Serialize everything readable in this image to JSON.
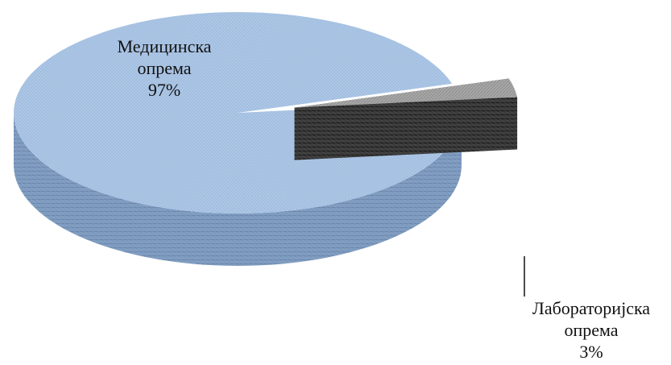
{
  "chart_data": {
    "type": "pie",
    "style": "3d-exploded",
    "title": "",
    "slices": [
      {
        "label_line1": "Медицинска",
        "label_line2": "опрема",
        "value": 97,
        "value_label": "97%",
        "color": "#a9c4e4",
        "side_color": "#7f9cc0"
      },
      {
        "label_line1": "Лабораторијска",
        "label_line2": "опрема",
        "value": 3,
        "value_label": "3%",
        "color": "#a6a6a6",
        "side_color": "#3c3c3c"
      }
    ],
    "legend": "none",
    "labels_outside": true
  }
}
